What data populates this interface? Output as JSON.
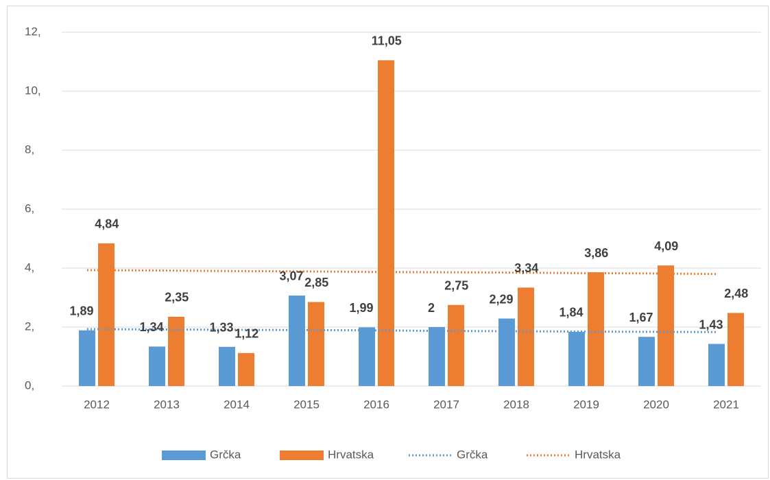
{
  "chart_data": {
    "type": "bar",
    "categories": [
      "2012",
      "2013",
      "2014",
      "2015",
      "2016",
      "2017",
      "2018",
      "2019",
      "2020",
      "2021"
    ],
    "series": [
      {
        "name": "Grčka",
        "color": "#5b9bd5",
        "values": [
          1.89,
          1.34,
          1.33,
          3.07,
          1.99,
          2,
          2.29,
          1.84,
          1.67,
          1.43
        ],
        "value_labels": [
          "1,89",
          "1,34",
          "1,33",
          "3,07",
          "1,99",
          "2",
          "2,29",
          "1,84",
          "1,67",
          "1,43"
        ]
      },
      {
        "name": "Hrvatska",
        "color": "#ed7d31",
        "values": [
          4.84,
          2.35,
          1.12,
          2.85,
          11.05,
          2.75,
          3.34,
          3.86,
          4.09,
          2.48
        ],
        "value_labels": [
          "4,84",
          "2,35",
          "1,12",
          "2,85",
          "11,05",
          "2,75",
          "3,34",
          "3,86",
          "4,09",
          "2,48"
        ]
      }
    ],
    "trendlines": [
      {
        "name": "Grčka",
        "color": "#5b9bd5",
        "values": [
          1.93,
          1.92,
          1.91,
          1.9,
          1.89,
          1.87,
          1.86,
          1.85,
          1.84,
          1.83
        ]
      },
      {
        "name": "Hrvatska",
        "color": "#ed7d31",
        "values": [
          3.93,
          3.92,
          3.9,
          3.89,
          3.87,
          3.86,
          3.85,
          3.83,
          3.82,
          3.8
        ]
      }
    ],
    "ylim": [
      0,
      12
    ],
    "yticks": [
      {
        "value": 0,
        "label": "0,"
      },
      {
        "value": 2,
        "label": "2,"
      },
      {
        "value": 4,
        "label": "4,"
      },
      {
        "value": 6,
        "label": "6,"
      },
      {
        "value": 8,
        "label": "8,"
      },
      {
        "value": 10,
        "label": "10,"
      },
      {
        "value": 12,
        "label": "12,"
      }
    ],
    "grid": true,
    "legend": "bottom"
  }
}
